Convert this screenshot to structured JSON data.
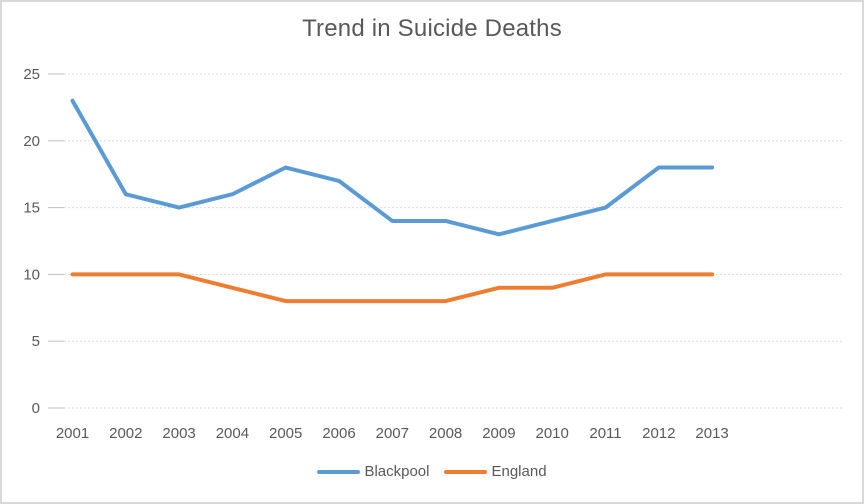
{
  "chart_data": {
    "type": "line",
    "title": "Trend in Suicide Deaths",
    "x": [
      2001,
      2002,
      2003,
      2004,
      2005,
      2006,
      2007,
      2008,
      2009,
      2010,
      2011,
      2012,
      2013
    ],
    "series": [
      {
        "name": "Blackpool",
        "color": "#5B9BD5",
        "values": [
          23,
          16,
          15,
          16,
          18,
          17,
          14,
          14,
          13,
          14,
          15,
          18,
          18
        ]
      },
      {
        "name": "England",
        "color": "#ED7D31",
        "values": [
          10,
          10,
          10,
          9,
          8,
          8,
          8,
          8,
          9,
          9,
          10,
          10,
          10
        ]
      }
    ],
    "xlabel": "",
    "ylabel": "",
    "ylim": [
      0,
      25
    ],
    "yticks": [
      0,
      5,
      10,
      15,
      20,
      25
    ],
    "grid": true,
    "legend_position": "bottom",
    "style": {
      "gridline_color": "#d9d9d9",
      "tick_color": "#bfbfbf",
      "axis_label_color": "#595959",
      "title_color": "#595959",
      "frame_border_color": "#d9d9d9",
      "background": "#ffffff"
    }
  }
}
